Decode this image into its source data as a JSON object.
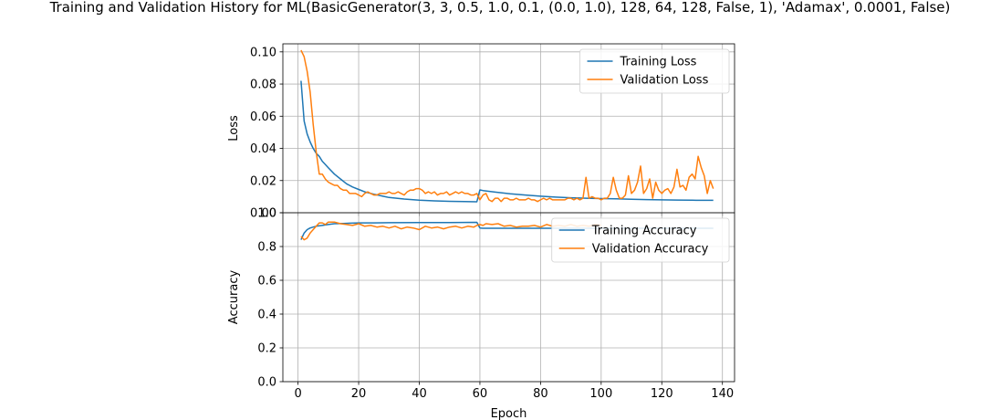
{
  "title": "Training and Validation History for ML(BasicGenerator(3, 3, 0.5, 1.0, 0.1, (0.0, 1.0), 128, 64, 128, False, 1), 'Adamax', 0.0001, False)",
  "colors": {
    "training": "#1f77b4",
    "validation": "#ff7f0e",
    "grid": "#b0b0b0"
  },
  "chart_data": [
    {
      "type": "line",
      "ylabel": "Loss",
      "xlim": [
        -5,
        144
      ],
      "ylim": [
        0,
        0.105
      ],
      "xticks": [
        0,
        20,
        40,
        60,
        80,
        100,
        120,
        140
      ],
      "yticks": [
        0.0,
        0.02,
        0.04,
        0.06,
        0.08,
        0.1
      ],
      "ytick_labels": [
        "0.00",
        "0.02",
        "0.04",
        "0.06",
        "0.08",
        "0.10"
      ],
      "grid": true,
      "legend": "top-right",
      "series": [
        {
          "name": "Training Loss",
          "color_key": "training",
          "x": [
            1,
            2,
            3,
            4,
            5,
            6,
            7,
            8,
            9,
            10,
            12,
            14,
            16,
            18,
            20,
            22,
            25,
            28,
            30,
            35,
            40,
            45,
            50,
            55,
            59,
            60,
            61,
            65,
            70,
            75,
            80,
            85,
            90,
            95,
            100,
            105,
            110,
            115,
            120,
            125,
            130,
            135,
            137
          ],
          "y": [
            0.082,
            0.057,
            0.049,
            0.044,
            0.04,
            0.037,
            0.035,
            0.032,
            0.03,
            0.028,
            0.024,
            0.021,
            0.018,
            0.016,
            0.0145,
            0.013,
            0.0115,
            0.0103,
            0.0095,
            0.0085,
            0.0078,
            0.0074,
            0.0071,
            0.0069,
            0.0068,
            0.0142,
            0.0138,
            0.0128,
            0.0118,
            0.011,
            0.0103,
            0.0097,
            0.0093,
            0.009,
            0.0088,
            0.0086,
            0.0084,
            0.0082,
            0.008,
            0.0079,
            0.0078,
            0.0077,
            0.0077
          ]
        },
        {
          "name": "Validation Loss",
          "color_key": "validation",
          "x": [
            1,
            2,
            3,
            4,
            5,
            6,
            7,
            8,
            9,
            10,
            11,
            12,
            13,
            14,
            15,
            16,
            17,
            18,
            19,
            20,
            21,
            22,
            23,
            24,
            25,
            26,
            27,
            28,
            29,
            30,
            31,
            32,
            33,
            34,
            35,
            36,
            37,
            38,
            39,
            40,
            41,
            42,
            43,
            44,
            45,
            46,
            47,
            48,
            49,
            50,
            51,
            52,
            53,
            54,
            55,
            56,
            57,
            58,
            59,
            60,
            61,
            62,
            63,
            64,
            65,
            66,
            67,
            68,
            69,
            70,
            71,
            72,
            73,
            74,
            75,
            76,
            77,
            78,
            79,
            80,
            81,
            82,
            83,
            84,
            85,
            86,
            87,
            88,
            89,
            90,
            91,
            92,
            93,
            94,
            95,
            96,
            97,
            98,
            99,
            100,
            101,
            102,
            103,
            104,
            105,
            106,
            107,
            108,
            109,
            110,
            111,
            112,
            113,
            114,
            115,
            116,
            117,
            118,
            119,
            120,
            121,
            122,
            123,
            124,
            125,
            126,
            127,
            128,
            129,
            130,
            131,
            132,
            133,
            134,
            135,
            136,
            137
          ],
          "y": [
            0.101,
            0.097,
            0.088,
            0.075,
            0.055,
            0.038,
            0.024,
            0.024,
            0.021,
            0.019,
            0.018,
            0.017,
            0.017,
            0.015,
            0.014,
            0.014,
            0.012,
            0.012,
            0.012,
            0.011,
            0.01,
            0.012,
            0.013,
            0.012,
            0.011,
            0.011,
            0.012,
            0.012,
            0.012,
            0.013,
            0.012,
            0.012,
            0.013,
            0.012,
            0.011,
            0.013,
            0.014,
            0.014,
            0.015,
            0.015,
            0.014,
            0.012,
            0.013,
            0.012,
            0.013,
            0.011,
            0.012,
            0.012,
            0.013,
            0.011,
            0.012,
            0.013,
            0.012,
            0.013,
            0.012,
            0.012,
            0.011,
            0.011,
            0.012,
            0.008,
            0.011,
            0.012,
            0.008,
            0.007,
            0.009,
            0.009,
            0.007,
            0.009,
            0.009,
            0.008,
            0.008,
            0.009,
            0.008,
            0.008,
            0.008,
            0.009,
            0.008,
            0.008,
            0.007,
            0.008,
            0.009,
            0.008,
            0.009,
            0.008,
            0.008,
            0.008,
            0.008,
            0.008,
            0.009,
            0.009,
            0.008,
            0.009,
            0.008,
            0.009,
            0.022,
            0.009,
            0.01,
            0.009,
            0.009,
            0.008,
            0.009,
            0.009,
            0.012,
            0.022,
            0.014,
            0.009,
            0.009,
            0.011,
            0.023,
            0.012,
            0.014,
            0.019,
            0.029,
            0.012,
            0.015,
            0.021,
            0.009,
            0.019,
            0.014,
            0.012,
            0.014,
            0.015,
            0.012,
            0.016,
            0.027,
            0.016,
            0.017,
            0.014,
            0.022,
            0.024,
            0.021,
            0.035,
            0.028,
            0.023,
            0.012,
            0.02,
            0.015
          ]
        }
      ]
    },
    {
      "type": "line",
      "ylabel": "Accuracy",
      "xlabel": "Epoch",
      "xlim": [
        -5,
        144
      ],
      "ylim": [
        0,
        1.0
      ],
      "xticks": [
        0,
        20,
        40,
        60,
        80,
        100,
        120,
        140
      ],
      "xtick_labels": [
        "0",
        "20",
        "40",
        "60",
        "80",
        "100",
        "120",
        "140"
      ],
      "yticks": [
        0.0,
        0.2,
        0.4,
        0.6,
        0.8,
        1.0
      ],
      "ytick_labels": [
        "0.0",
        "0.2",
        "0.4",
        "0.6",
        "0.8",
        "1.0"
      ],
      "grid": true,
      "legend": "top-right",
      "series": [
        {
          "name": "Training Accuracy",
          "color_key": "training",
          "x": [
            1,
            2,
            3,
            4,
            5,
            6,
            8,
            10,
            12,
            15,
            20,
            25,
            30,
            40,
            50,
            59,
            60,
            61,
            65,
            70,
            80,
            90,
            100,
            110,
            120,
            130,
            137
          ],
          "y": [
            0.84,
            0.88,
            0.9,
            0.91,
            0.915,
            0.92,
            0.925,
            0.93,
            0.935,
            0.937,
            0.94,
            0.94,
            0.941,
            0.942,
            0.942,
            0.943,
            0.91,
            0.908,
            0.908,
            0.908,
            0.908,
            0.908,
            0.908,
            0.908,
            0.908,
            0.908,
            0.908
          ]
        },
        {
          "name": "Validation Accuracy",
          "color_key": "validation",
          "x": [
            1,
            2,
            3,
            4,
            5,
            6,
            7,
            8,
            9,
            10,
            12,
            14,
            16,
            18,
            20,
            22,
            24,
            26,
            28,
            30,
            32,
            34,
            36,
            38,
            40,
            42,
            44,
            46,
            48,
            50,
            52,
            54,
            56,
            58,
            59,
            60,
            61,
            62,
            64,
            66,
            68,
            70,
            72,
            74,
            76,
            78,
            80,
            82,
            84,
            86,
            88,
            90,
            92,
            94,
            96,
            98,
            100
          ],
          "y": [
            0.86,
            0.84,
            0.85,
            0.88,
            0.9,
            0.92,
            0.94,
            0.94,
            0.93,
            0.945,
            0.945,
            0.935,
            0.93,
            0.925,
            0.935,
            0.92,
            0.925,
            0.915,
            0.92,
            0.91,
            0.92,
            0.905,
            0.915,
            0.91,
            0.9,
            0.92,
            0.91,
            0.915,
            0.905,
            0.915,
            0.92,
            0.91,
            0.92,
            0.915,
            0.925,
            0.93,
            0.925,
            0.935,
            0.93,
            0.935,
            0.92,
            0.925,
            0.915,
            0.92,
            0.92,
            0.925,
            0.915,
            0.93,
            0.92,
            0.925,
            0.92,
            0.93,
            0.92,
            0.925,
            0.92,
            0.93,
            0.925
          ]
        }
      ]
    }
  ]
}
